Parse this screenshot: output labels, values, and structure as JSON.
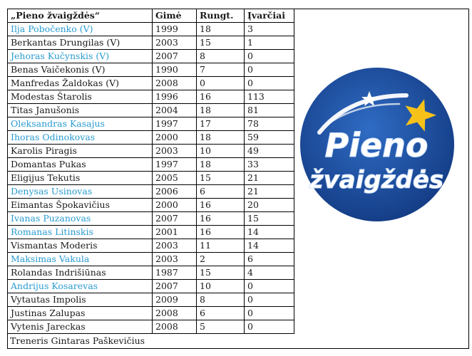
{
  "table": {
    "headers": [
      "„Pieno žvaigždės“",
      "Gimė",
      "Rungt.",
      "Įvarčiai"
    ],
    "rows": [
      {
        "name": "Ilja Pobočenko (V)",
        "born": "1999",
        "games": "18",
        "goals": "3",
        "link": true
      },
      {
        "name": "Berkantas Drungilas (V)",
        "born": "2003",
        "games": "15",
        "goals": "1",
        "link": false
      },
      {
        "name": "Jehoras Kučynskis (V)",
        "born": "2007",
        "games": "8",
        "goals": "0",
        "link": true
      },
      {
        "name": "Benas Vaičekonis (V)",
        "born": "1990",
        "games": "7",
        "goals": "0",
        "link": false
      },
      {
        "name": "Manfredas Žaldokas (V)",
        "born": "2008",
        "games": "0",
        "goals": "0",
        "link": false
      },
      {
        "name": "Modestas Štarolis",
        "born": "1996",
        "games": "16",
        "goals": "113",
        "link": false
      },
      {
        "name": "Titas Janušonis",
        "born": "2004",
        "games": "18",
        "goals": "81",
        "link": false
      },
      {
        "name": "Oleksandras Kasajus",
        "born": "1997",
        "games": "17",
        "goals": "78",
        "link": true
      },
      {
        "name": "Ihoras Odinokovas",
        "born": "2000",
        "games": "18",
        "goals": "59",
        "link": true
      },
      {
        "name": "Karolis Piragis",
        "born": "2003",
        "games": "10",
        "goals": "49",
        "link": false
      },
      {
        "name": "Domantas Pukas",
        "born": "1997",
        "games": "18",
        "goals": "33",
        "link": false
      },
      {
        "name": "Eligijus Tekutis",
        "born": "2005",
        "games": "15",
        "goals": "21",
        "link": false
      },
      {
        "name": "Denysas Usinovas",
        "born": "2006",
        "games": "6",
        "goals": "21",
        "link": true
      },
      {
        "name": "Eimantas Špokavičius",
        "born": "2000",
        "games": "16",
        "goals": "20",
        "link": false
      },
      {
        "name": "Ivanas Puzanovas",
        "born": "2007",
        "games": "16",
        "goals": "15",
        "link": true
      },
      {
        "name": "Romanas Litinskis",
        "born": "2001",
        "games": "16",
        "goals": "14",
        "link": true
      },
      {
        "name": "Vismantas Moderis",
        "born": "2003",
        "games": "11",
        "goals": "14",
        "link": false
      },
      {
        "name": "Maksimas Vakula",
        "born": "2003",
        "games": "2",
        "goals": "6",
        "link": true
      },
      {
        "name": "Rolandas Indrišiūnas",
        "born": "1987",
        "games": "15",
        "goals": "4",
        "link": false
      },
      {
        "name": "Andrijus Kosarevas",
        "born": "2007",
        "games": "10",
        "goals": "0",
        "link": true
      },
      {
        "name": "Vytautas Impolis",
        "born": "2009",
        "games": "8",
        "goals": "0",
        "link": false
      },
      {
        "name": "Justinas Zalupas",
        "born": "2008",
        "games": "6",
        "goals": "0",
        "link": false
      },
      {
        "name": "Vytenis Jareckas",
        "born": "2008",
        "games": "5",
        "goals": "0",
        "link": false
      }
    ]
  },
  "footer": "Treneris Gintaras Paškevičius",
  "logo": {
    "line1": "Pieno",
    "line2": "žvaigždės",
    "circle_color": "#1a4a9c",
    "star_color": "#f6c21a"
  }
}
